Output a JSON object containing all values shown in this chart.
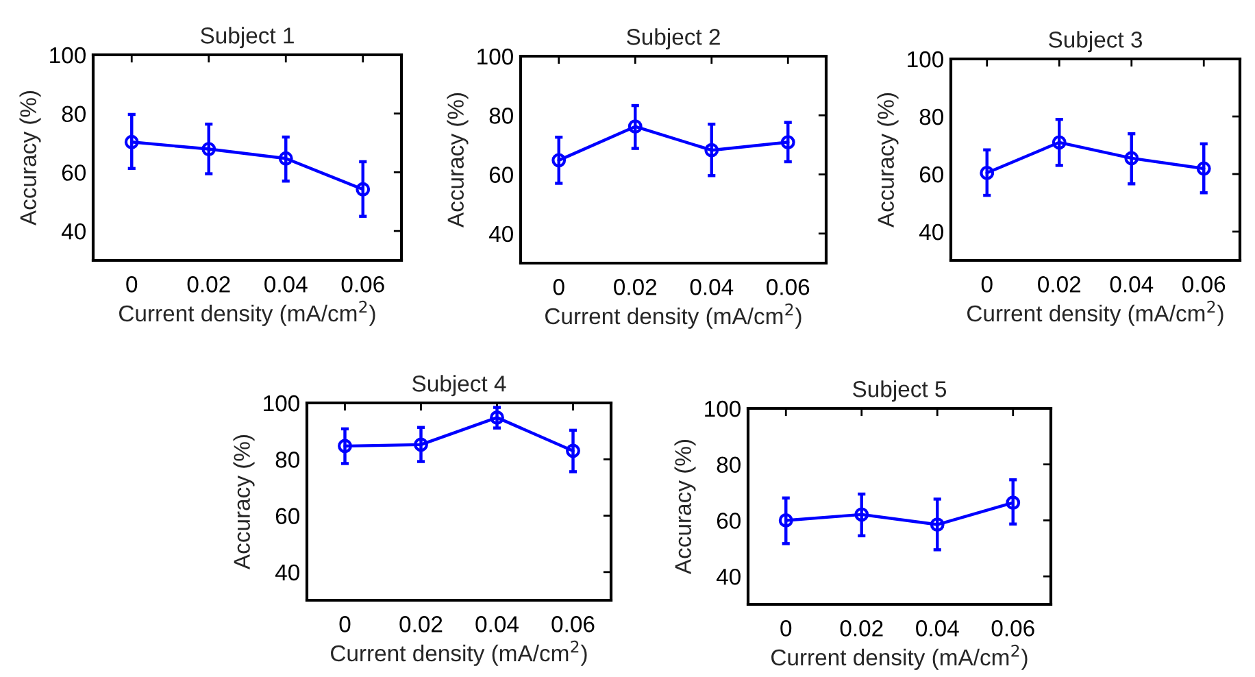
{
  "chart_data": [
    {
      "type": "line",
      "title": "Subject 1",
      "xlabel": "Current density (mA/cm$^{2}$)",
      "ylabel": "Accuracy (%)",
      "x": [
        0,
        0.02,
        0.04,
        0.06
      ],
      "xlim": [
        -0.01,
        0.07
      ],
      "xticks": [
        0,
        0.02,
        0.04,
        0.06
      ],
      "ylim": [
        30,
        100
      ],
      "yticks": [
        40,
        60,
        80,
        100
      ],
      "grid": false,
      "marker": "circle",
      "line_style": "solid",
      "series": [
        {
          "color": "#0000ff",
          "values": [
            70.3,
            67.9,
            64.7,
            54.2
          ],
          "errors": [
            [
              61.3,
              79.7
            ],
            [
              59.5,
              76.4
            ],
            [
              57,
              72
            ],
            [
              45,
              63.6
            ]
          ]
        }
      ]
    },
    {
      "type": "line",
      "title": "Subject 2",
      "xlabel": "Current density (mA/cm$^{2}$)",
      "ylabel": "Accuracy (%)",
      "x": [
        0,
        0.02,
        0.04,
        0.06
      ],
      "xlim": [
        -0.01,
        0.07
      ],
      "xticks": [
        0,
        0.02,
        0.04,
        0.06
      ],
      "ylim": [
        30,
        100
      ],
      "yticks": [
        40,
        60,
        80,
        100
      ],
      "grid": false,
      "marker": "circle",
      "line_style": "solid",
      "series": [
        {
          "color": "#0000ff",
          "values": [
            64.8,
            76.2,
            68.2,
            70.9
          ],
          "errors": [
            [
              57,
              72.6
            ],
            [
              68.8,
              83.3
            ],
            [
              59.6,
              77
            ],
            [
              64.3,
              77.6
            ]
          ]
        }
      ]
    },
    {
      "type": "line",
      "title": "Subject 3",
      "xlabel": "Current density (mA/cm$^{2}$)",
      "ylabel": "Accuracy (%)",
      "x": [
        0,
        0.02,
        0.04,
        0.06
      ],
      "xlim": [
        -0.01,
        0.07
      ],
      "xticks": [
        0,
        0.02,
        0.04,
        0.06
      ],
      "ylim": [
        30,
        100
      ],
      "yticks": [
        40,
        60,
        80,
        100
      ],
      "grid": false,
      "marker": "circle",
      "line_style": "solid",
      "series": [
        {
          "color": "#0000ff",
          "values": [
            60.4,
            71,
            65.5,
            61.9
          ],
          "errors": [
            [
              52.6,
              68.4
            ],
            [
              63,
              79
            ],
            [
              56.6,
              74
            ],
            [
              53.5,
              70.5
            ]
          ]
        }
      ]
    },
    {
      "type": "line",
      "title": "Subject 4",
      "xlabel": "Current density (mA/cm$^{2}$)",
      "ylabel": "Accuracy (%)",
      "x": [
        0,
        0.02,
        0.04,
        0.06
      ],
      "xlim": [
        -0.01,
        0.07
      ],
      "xticks": [
        0,
        0.02,
        0.04,
        0.06
      ],
      "ylim": [
        30,
        100
      ],
      "yticks": [
        40,
        60,
        80,
        100
      ],
      "grid": false,
      "marker": "circle",
      "line_style": "solid",
      "series": [
        {
          "color": "#0000ff",
          "values": [
            84.7,
            85.2,
            94.8,
            83
          ],
          "errors": [
            [
              78.5,
              90.8
            ],
            [
              79.2,
              91.3
            ],
            [
              91.1,
              98.4
            ],
            [
              75.6,
              90.3
            ]
          ]
        }
      ]
    },
    {
      "type": "line",
      "title": "Subject 5",
      "xlabel": "Current density (mA/cm$^{2}$)",
      "ylabel": "Accuracy (%)",
      "x": [
        0,
        0.02,
        0.04,
        0.06
      ],
      "xlim": [
        -0.01,
        0.07
      ],
      "xticks": [
        0,
        0.02,
        0.04,
        0.06
      ],
      "ylim": [
        30,
        100
      ],
      "yticks": [
        40,
        60,
        80,
        100
      ],
      "grid": false,
      "marker": "circle",
      "line_style": "solid",
      "series": [
        {
          "color": "#0000ff",
          "values": [
            60,
            62.1,
            58.5,
            66.3
          ],
          "errors": [
            [
              51.7,
              68
            ],
            [
              54.5,
              69.4
            ],
            [
              49.5,
              67.6
            ],
            [
              58.7,
              74.5
            ]
          ]
        }
      ]
    }
  ]
}
